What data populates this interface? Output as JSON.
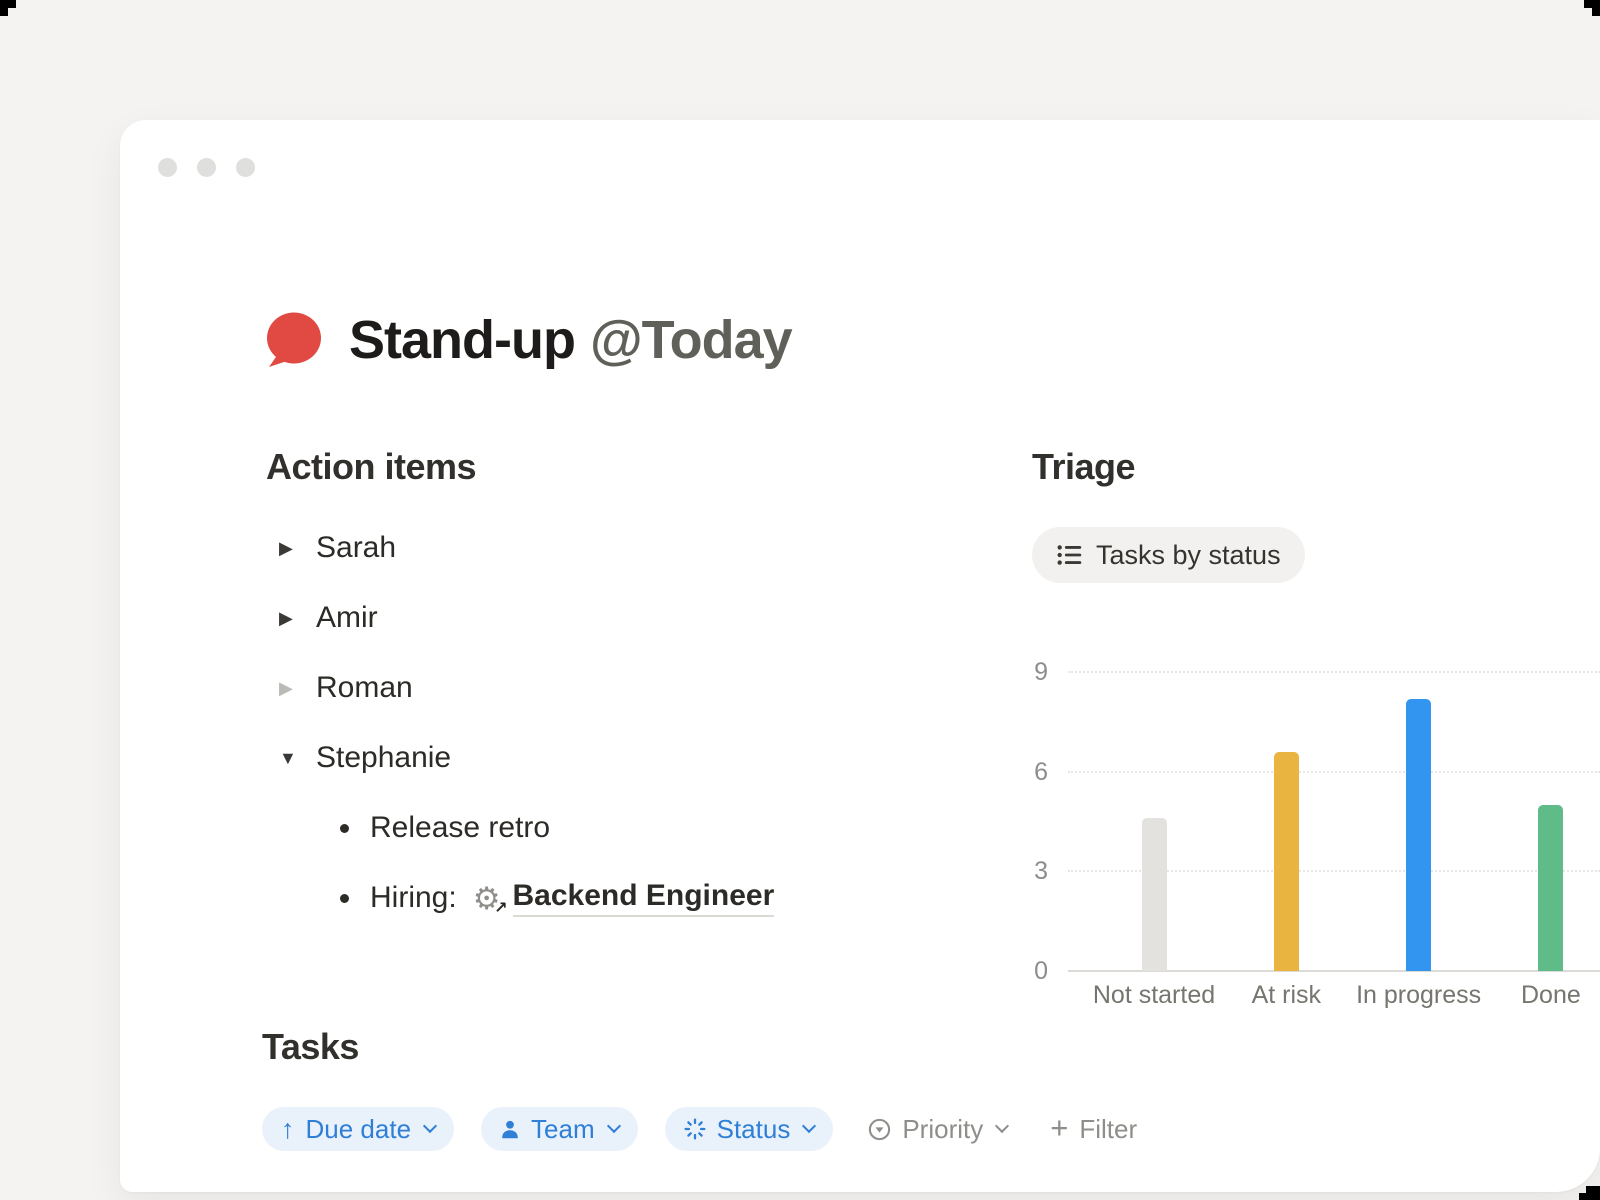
{
  "window": {
    "traffic_light_count": 3
  },
  "page": {
    "icon": "speech-bubble-icon",
    "icon_color": "#e04a43",
    "title": "Stand-up",
    "date_mention": "@Today"
  },
  "action_items": {
    "heading": "Action items",
    "items": [
      {
        "label": "Sarah",
        "state": "collapsed"
      },
      {
        "label": "Amir",
        "state": "collapsed"
      },
      {
        "label": "Roman",
        "state": "collapsed"
      },
      {
        "label": "Stephanie",
        "state": "expanded"
      }
    ],
    "stephanie_children": [
      {
        "text": "Release retro"
      },
      {
        "prefix": "Hiring:",
        "link_icon": "gear-icon",
        "link_text": "Backend Engineer"
      }
    ]
  },
  "triage": {
    "heading": "Triage",
    "view_chip": {
      "icon": "bullet-list-icon",
      "label": "Tasks by status"
    }
  },
  "chart_data": {
    "type": "bar",
    "title": "Tasks by status",
    "categories": [
      "Not started",
      "At risk",
      "In progress",
      "Done"
    ],
    "values": [
      4.6,
      6.6,
      8.2,
      5.0
    ],
    "bar_colors": [
      "#e3e2df",
      "#e9b43f",
      "#3295ef",
      "#5fbc89"
    ],
    "xlabel": "",
    "ylabel": "",
    "yticks": [
      0,
      3,
      6,
      9
    ],
    "ylim": [
      0,
      9.3
    ],
    "grid": "horizontal dotted lines at 3, 6, 9; solid baseline at 0",
    "legend_position": "none",
    "note": "right side of plot clipped by viewport"
  },
  "tasks": {
    "heading": "Tasks",
    "filters": [
      {
        "icon": "arrow-up-icon",
        "label": "Due date",
        "style": "active-blue",
        "chevron": true
      },
      {
        "icon": "person-icon",
        "label": "Team",
        "style": "active-blue",
        "chevron": true
      },
      {
        "icon": "status-spinner-icon",
        "label": "Status",
        "style": "active-blue",
        "chevron": true
      },
      {
        "icon": "priority-circle-icon",
        "label": "Priority",
        "style": "plain-gray",
        "chevron": true
      },
      {
        "icon": "plus-icon",
        "label": "Filter",
        "style": "plain-gray",
        "chevron": false
      }
    ]
  },
  "colors": {
    "page_background": "#f4f3f1",
    "card_background": "#ffffff",
    "accent_blue": "#2e7fd5",
    "blue_chip_background": "#e9f1fb",
    "gray_chip_background": "#f2f1ef",
    "bar_gray": "#e3e2df",
    "bar_yellow": "#e9b43f",
    "bar_blue": "#3295ef",
    "bar_green": "#5fbc89",
    "page_icon_red": "#e04a43"
  }
}
